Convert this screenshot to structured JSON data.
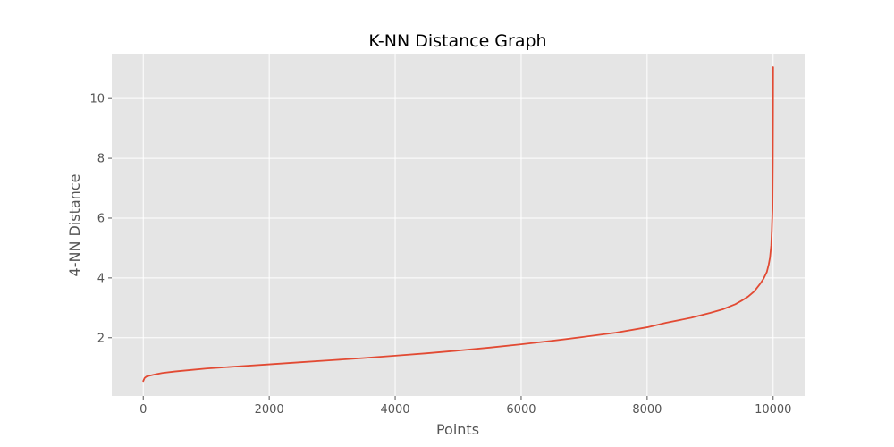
{
  "chart_data": {
    "type": "line",
    "title": "K-NN Distance Graph",
    "xlabel": "Points",
    "ylabel": "4-NN Distance",
    "xlim": [
      -500,
      10500
    ],
    "ylim": [
      0.05,
      11.5
    ],
    "xticks": [
      0,
      2000,
      4000,
      6000,
      8000,
      10000
    ],
    "xtick_labels": [
      "0",
      "2000",
      "4000",
      "6000",
      "8000",
      "10000"
    ],
    "yticks": [
      2,
      4,
      6,
      8,
      10
    ],
    "ytick_labels": [
      "2",
      "4",
      "6",
      "8",
      "10"
    ],
    "grid": true,
    "colors": {
      "line": "#e24a33",
      "plot_background": "#e5e5e5",
      "grid": "#ffffff"
    },
    "series": [
      {
        "x": [
          0,
          20,
          50,
          100,
          200,
          300,
          500,
          800,
          1000,
          1500,
          2000,
          2500,
          3000,
          3500,
          4000,
          4500,
          5000,
          5500,
          6000,
          6500,
          7000,
          7500,
          8000,
          8300,
          8700,
          9000,
          9200,
          9400,
          9500,
          9600,
          9700,
          9800,
          9850,
          9900,
          9930,
          9950,
          9970,
          9980,
          9990,
          9995,
          9998,
          10000
        ],
        "y": [
          0.55,
          0.65,
          0.7,
          0.73,
          0.78,
          0.82,
          0.87,
          0.93,
          0.97,
          1.04,
          1.11,
          1.18,
          1.25,
          1.32,
          1.4,
          1.48,
          1.57,
          1.67,
          1.78,
          1.9,
          2.03,
          2.17,
          2.35,
          2.5,
          2.67,
          2.83,
          2.95,
          3.12,
          3.24,
          3.37,
          3.55,
          3.82,
          3.98,
          4.2,
          4.45,
          4.68,
          5.1,
          5.6,
          6.3,
          7.8,
          9.5,
          11.05
        ]
      }
    ]
  }
}
